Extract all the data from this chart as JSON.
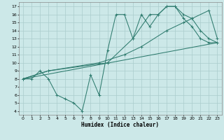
{
  "xlabel": "Humidex (Indice chaleur)",
  "xlim": [
    -0.5,
    23.5
  ],
  "ylim": [
    3.5,
    17.5
  ],
  "xticks": [
    0,
    1,
    2,
    3,
    4,
    5,
    6,
    7,
    8,
    9,
    10,
    11,
    12,
    13,
    14,
    15,
    16,
    17,
    18,
    19,
    20,
    21,
    22,
    23
  ],
  "yticks": [
    4,
    5,
    6,
    7,
    8,
    9,
    10,
    11,
    12,
    13,
    14,
    15,
    16,
    17
  ],
  "bg_color": "#cce8e8",
  "grid_color": "#aacccc",
  "line_color": "#2e7b6e",
  "line1_x": [
    0,
    1,
    2,
    3,
    4,
    5,
    6,
    7,
    8,
    9,
    10,
    11,
    12,
    13,
    14,
    15,
    16,
    17,
    18,
    19,
    20,
    21,
    22,
    23
  ],
  "line1_y": [
    8,
    8,
    9,
    8,
    6,
    5.5,
    5,
    4,
    8.5,
    6,
    11.5,
    16,
    16,
    13,
    16,
    14.5,
    16,
    17,
    17,
    15.5,
    14.5,
    13,
    12.5,
    12.5
  ],
  "line2_x": [
    0,
    3,
    10,
    13,
    15,
    16,
    17,
    18,
    19,
    20,
    21,
    22,
    23
  ],
  "line2_y": [
    8,
    9,
    10,
    13,
    16,
    16,
    17,
    17,
    16,
    15.5,
    14,
    13,
    12.5
  ],
  "line3_x": [
    0,
    3,
    9,
    12,
    14,
    17,
    19,
    20,
    22,
    23
  ],
  "line3_y": [
    8,
    9,
    10,
    11,
    12,
    14,
    15,
    15.5,
    16.5,
    13
  ],
  "line4_x": [
    0,
    23
  ],
  "line4_y": [
    8,
    12.5
  ],
  "figsize": [
    3.2,
    2.0
  ],
  "dpi": 100
}
